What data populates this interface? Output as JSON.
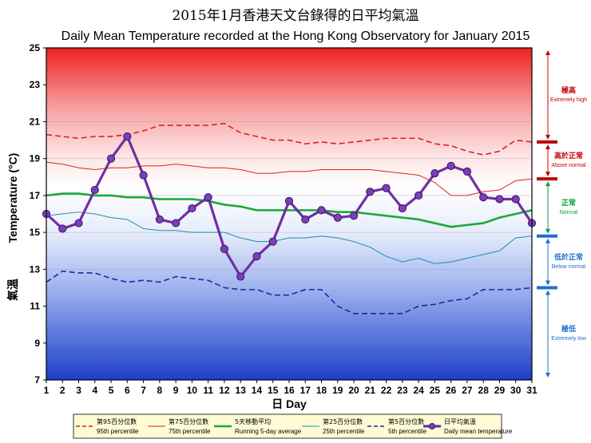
{
  "chart_data": {
    "type": "line",
    "title_zh": "2015年1月香港天文台錄得的日平均氣溫",
    "title": "Daily Mean Temperature recorded at the Hong Kong Observatory for January 2015",
    "xlabel": "日 Day",
    "ylabel_zh": "氣溫",
    "ylabel": "Temperature (°C)",
    "x": [
      1,
      2,
      3,
      4,
      5,
      6,
      7,
      8,
      9,
      10,
      11,
      12,
      13,
      14,
      15,
      16,
      17,
      18,
      19,
      20,
      21,
      22,
      23,
      24,
      25,
      26,
      27,
      28,
      29,
      30,
      31
    ],
    "ylim": [
      7,
      25
    ],
    "yticks": [
      7,
      9,
      11,
      13,
      15,
      17,
      19,
      21,
      23,
      25
    ],
    "series": [
      {
        "key": "p95",
        "name_zh": "第95百分位數",
        "name": "95th percentile",
        "color": "#e02020",
        "style": "dashed",
        "values": [
          20.3,
          20.2,
          20.1,
          20.2,
          20.2,
          20.3,
          20.5,
          20.8,
          20.8,
          20.8,
          20.8,
          20.9,
          20.4,
          20.2,
          20.0,
          20.0,
          19.8,
          19.9,
          19.8,
          19.9,
          20.0,
          20.1,
          20.1,
          20.1,
          19.8,
          19.7,
          19.4,
          19.2,
          19.4,
          20.0,
          19.9
        ]
      },
      {
        "key": "p75",
        "name_zh": "第75百分位數",
        "name": "75th percentile",
        "color": "#e02020",
        "style": "solid-thin",
        "values": [
          18.8,
          18.7,
          18.5,
          18.4,
          18.5,
          18.5,
          18.6,
          18.6,
          18.7,
          18.6,
          18.5,
          18.5,
          18.4,
          18.2,
          18.2,
          18.3,
          18.3,
          18.4,
          18.4,
          18.4,
          18.4,
          18.3,
          18.2,
          18.1,
          17.7,
          17.0,
          17.0,
          17.2,
          17.3,
          17.8,
          17.9
        ]
      },
      {
        "key": "avg5",
        "name_zh": "5天移動平均",
        "name": "Running 5-day average",
        "color": "#1ba83a",
        "style": "solid-thick",
        "values": [
          17.0,
          17.1,
          17.1,
          17.0,
          17.0,
          16.9,
          16.9,
          16.8,
          16.8,
          16.8,
          16.7,
          16.5,
          16.4,
          16.2,
          16.2,
          16.2,
          16.2,
          16.2,
          16.1,
          16.1,
          16.0,
          15.9,
          15.8,
          15.7,
          15.5,
          15.3,
          15.4,
          15.5,
          15.8,
          16.0,
          16.2
        ]
      },
      {
        "key": "p25",
        "name_zh": "第25百分位數",
        "name": "25th percentile",
        "color": "#1f8f9e",
        "style": "solid-thin",
        "values": [
          15.9,
          16.0,
          16.1,
          16.0,
          15.8,
          15.7,
          15.2,
          15.1,
          15.1,
          15.0,
          15.0,
          15.0,
          14.7,
          14.5,
          14.5,
          14.7,
          14.7,
          14.8,
          14.7,
          14.5,
          14.2,
          13.7,
          13.4,
          13.6,
          13.3,
          13.4,
          13.6,
          13.8,
          14.0,
          14.7,
          14.8
        ]
      },
      {
        "key": "p5",
        "name_zh": "第5百分位數",
        "name": "5th percentile",
        "color": "#1a2a9e",
        "style": "dashed",
        "values": [
          12.3,
          12.9,
          12.8,
          12.8,
          12.5,
          12.3,
          12.4,
          12.3,
          12.6,
          12.5,
          12.4,
          12.0,
          11.9,
          11.9,
          11.6,
          11.6,
          11.9,
          11.9,
          11.0,
          10.6,
          10.6,
          10.6,
          10.6,
          11.0,
          11.1,
          11.3,
          11.4,
          11.9,
          11.9,
          11.9,
          12.0
        ]
      },
      {
        "key": "mean",
        "name_zh": "日平均氣溫",
        "name": "Daily mean temperature",
        "color": "#7030a0",
        "style": "marker",
        "values": [
          16.0,
          15.2,
          15.5,
          17.3,
          19.0,
          20.2,
          18.1,
          15.7,
          15.5,
          16.3,
          16.9,
          14.1,
          12.6,
          13.7,
          14.5,
          16.7,
          15.7,
          16.2,
          15.8,
          15.9,
          17.2,
          17.4,
          16.3,
          17.0,
          18.2,
          18.6,
          18.3,
          16.9,
          16.8,
          16.8,
          15.5
        ]
      }
    ],
    "bands": [
      {
        "key": "extremely_high",
        "label_zh": "極高",
        "label": "Extremely high",
        "color": "#c00000",
        "from": 19.9,
        "to": 25
      },
      {
        "key": "above_normal",
        "label_zh": "高於正常",
        "label": "Above normal",
        "color": "#c00000",
        "from": 17.9,
        "to": 19.9
      },
      {
        "key": "normal",
        "label_zh": "正常",
        "label": "Normal",
        "color": "#00a040",
        "from": 14.8,
        "to": 17.9
      },
      {
        "key": "below_normal",
        "label_zh": "低於正常",
        "label": "Below normal",
        "color": "#1f6fd0",
        "from": 12.0,
        "to": 14.8
      },
      {
        "key": "extremely_low",
        "label_zh": "極低",
        "label": "Extremely low",
        "color": "#1f6fd0",
        "from": 7,
        "to": 12.0
      }
    ]
  }
}
